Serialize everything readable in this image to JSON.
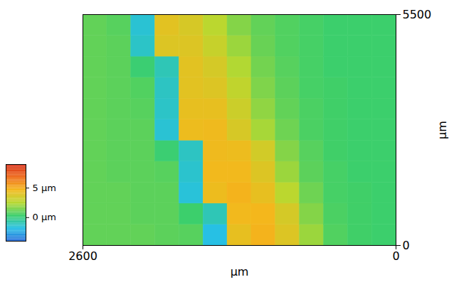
{
  "chart_data": {
    "type": "heatmap",
    "x_label": "µm",
    "y_label": "µm",
    "xlim": [
      2600,
      0
    ],
    "xticks": [
      2600,
      0
    ],
    "ylim": [
      0,
      5500
    ],
    "yticks": [
      0,
      5500
    ],
    "x_bins": [
      2600,
      2400,
      2200,
      2000,
      1800,
      1600,
      1400,
      1200,
      1000,
      800,
      600,
      400,
      200,
      0
    ],
    "y_bins": [
      0,
      500,
      1000,
      1500,
      2000,
      2500,
      3000,
      3500,
      4000,
      4500,
      5000,
      5500
    ],
    "z": [
      [
        1.0,
        1.0,
        1.0,
        0.9,
        0.8,
        -1.8,
        4.2,
        4.8,
        3.8,
        2.0,
        0.7,
        0.4,
        0.3
      ],
      [
        1.0,
        1.0,
        0.9,
        0.9,
        0.3,
        -1.0,
        4.6,
        4.7,
        3.5,
        1.6,
        0.6,
        0.4,
        0.3
      ],
      [
        1.0,
        1.0,
        0.9,
        0.9,
        -1.6,
        4.4,
        4.8,
        4.2,
        2.6,
        1.2,
        0.5,
        0.4,
        0.3
      ],
      [
        1.0,
        0.9,
        0.9,
        0.8,
        -1.4,
        4.6,
        4.6,
        3.8,
        2.0,
        0.9,
        0.5,
        0.3,
        0.3
      ],
      [
        1.0,
        0.9,
        0.9,
        0.2,
        -1.2,
        4.5,
        4.4,
        3.4,
        1.6,
        0.8,
        0.4,
        0.3,
        0.3
      ],
      [
        1.0,
        0.9,
        0.9,
        -1.5,
        4.4,
        4.5,
        3.6,
        2.2,
        1.2,
        0.6,
        0.4,
        0.3,
        0.3
      ],
      [
        1.0,
        0.9,
        0.8,
        -1.3,
        4.2,
        4.2,
        3.2,
        1.8,
        1.0,
        0.6,
        0.4,
        0.3,
        0.3
      ],
      [
        1.0,
        0.9,
        0.7,
        -1.2,
        4.0,
        3.8,
        2.8,
        1.5,
        0.9,
        0.5,
        0.4,
        0.3,
        0.3
      ],
      [
        1.0,
        0.9,
        0.2,
        -1.0,
        4.0,
        3.5,
        2.4,
        1.3,
        0.8,
        0.5,
        0.3,
        0.3,
        0.3
      ],
      [
        1.0,
        0.9,
        -1.3,
        3.8,
        3.8,
        3.0,
        2.0,
        1.1,
        0.7,
        0.5,
        0.3,
        0.3,
        0.3
      ],
      [
        1.0,
        0.8,
        -1.5,
        4.0,
        3.6,
        2.6,
        1.6,
        1.0,
        0.7,
        0.5,
        0.3,
        0.3,
        0.3
      ]
    ],
    "colorbar": {
      "range": [
        -4,
        9
      ],
      "ticks": [
        {
          "value": 5,
          "label": "5 µm"
        },
        {
          "value": 0,
          "label": "0 µm"
        }
      ]
    },
    "legend": "left"
  }
}
